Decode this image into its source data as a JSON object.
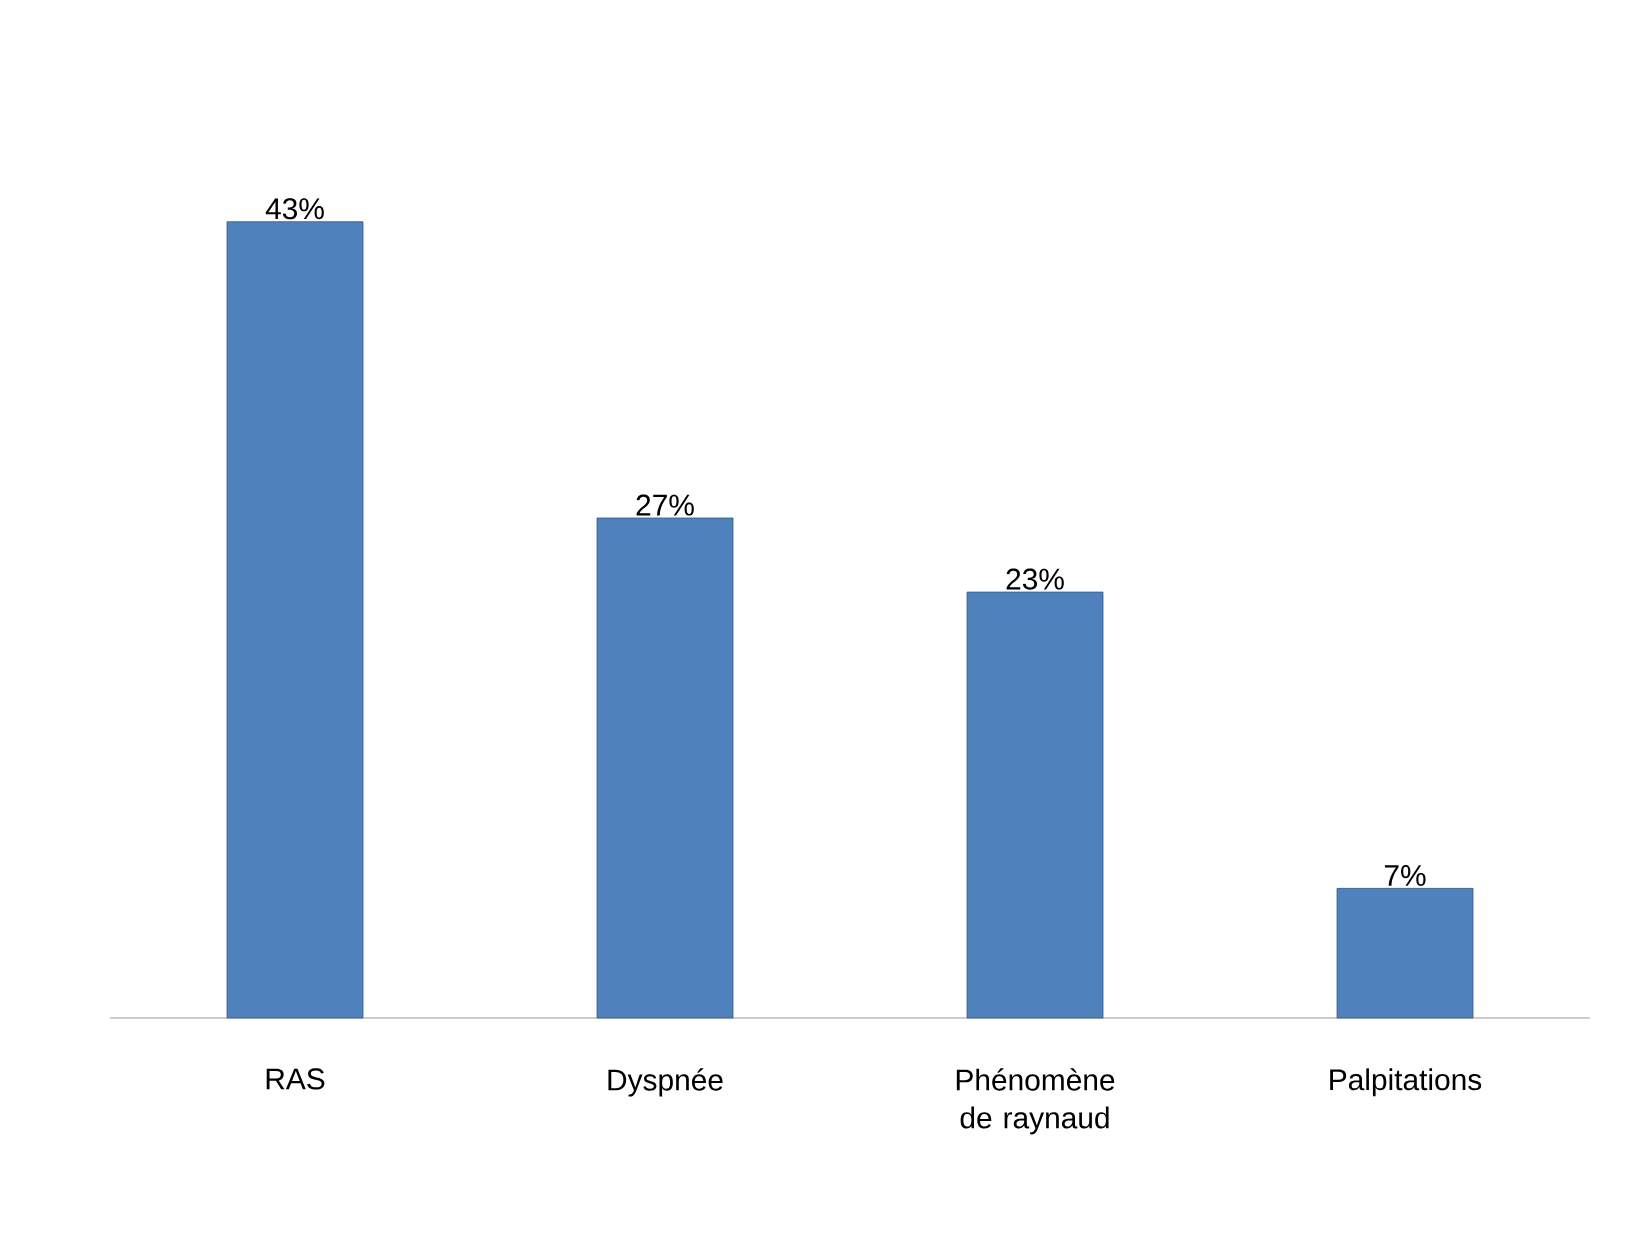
{
  "chart_data": {
    "type": "bar",
    "categories": [
      "RAS",
      "Dyspnée",
      "Phénomène de raynaud",
      "Palpitations"
    ],
    "values": [
      43,
      27,
      23,
      7
    ],
    "value_labels": [
      "43%",
      "27%",
      "23%",
      "7%"
    ],
    "color": "#4f81bd"
  }
}
